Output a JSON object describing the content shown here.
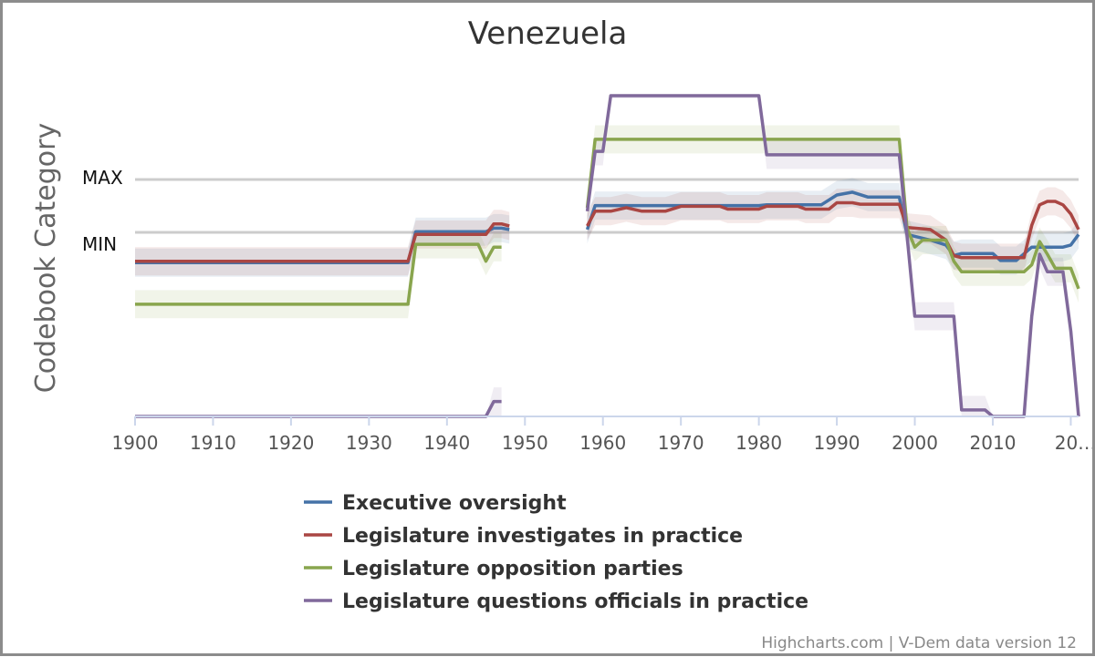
{
  "chart_data": {
    "type": "line",
    "title": "Venezuela",
    "ylabel": "Codebook Category",
    "y_markers": [
      "MAX",
      "MIN"
    ],
    "x_ticks": [
      "1900",
      "1910",
      "1920",
      "1930",
      "1940",
      "1950",
      "1960",
      "1970",
      "1980",
      "1990",
      "2000",
      "2010",
      "20…"
    ],
    "xlim": [
      1900,
      2021
    ],
    "grid": false,
    "legend_position": "bottom",
    "series": [
      {
        "name": "Executive oversight",
        "color": "#4572a7",
        "points": [
          [
            1900,
            0.47
          ],
          [
            1935,
            0.47
          ],
          [
            1936,
            0.91
          ],
          [
            1945,
            0.91
          ],
          [
            1946,
            0.96
          ],
          [
            1947,
            0.96
          ],
          [
            1948,
            0.94
          ],
          [
            1958,
            0.94
          ],
          [
            1959,
            1.28
          ],
          [
            1980,
            1.28
          ],
          [
            1981,
            1.29
          ],
          [
            1988,
            1.29
          ],
          [
            1990,
            1.43
          ],
          [
            1992,
            1.47
          ],
          [
            1994,
            1.4
          ],
          [
            1998,
            1.4
          ],
          [
            1999,
            0.87
          ],
          [
            2002,
            0.79
          ],
          [
            2004,
            0.72
          ],
          [
            2005,
            0.57
          ],
          [
            2006,
            0.6
          ],
          [
            2010,
            0.6
          ],
          [
            2011,
            0.5
          ],
          [
            2013,
            0.5
          ],
          [
            2015,
            0.69
          ],
          [
            2019,
            0.69
          ],
          [
            2020,
            0.72
          ],
          [
            2021,
            0.87
          ]
        ],
        "missing": [
          [
            1948,
            1958
          ]
        ]
      },
      {
        "name": "Legislature investigates in practice",
        "color": "#aa4643",
        "points": [
          [
            1900,
            0.49
          ],
          [
            1935,
            0.49
          ],
          [
            1936,
            0.87
          ],
          [
            1945,
            0.87
          ],
          [
            1946,
            1.02
          ],
          [
            1947,
            1.02
          ],
          [
            1948,
            0.99
          ],
          [
            1958,
            0.99
          ],
          [
            1959,
            1.2
          ],
          [
            1961,
            1.2
          ],
          [
            1963,
            1.25
          ],
          [
            1965,
            1.2
          ],
          [
            1968,
            1.2
          ],
          [
            1970,
            1.27
          ],
          [
            1975,
            1.27
          ],
          [
            1976,
            1.23
          ],
          [
            1980,
            1.23
          ],
          [
            1981,
            1.27
          ],
          [
            1985,
            1.27
          ],
          [
            1986,
            1.23
          ],
          [
            1989,
            1.23
          ],
          [
            1990,
            1.32
          ],
          [
            1992,
            1.32
          ],
          [
            1993,
            1.3
          ],
          [
            1998,
            1.3
          ],
          [
            1999,
            0.97
          ],
          [
            2002,
            0.94
          ],
          [
            2004,
            0.79
          ],
          [
            2005,
            0.57
          ],
          [
            2006,
            0.54
          ],
          [
            2010,
            0.54
          ],
          [
            2011,
            0.54
          ],
          [
            2014,
            0.54
          ],
          [
            2015,
            1.0
          ],
          [
            2016,
            1.29
          ],
          [
            2017,
            1.34
          ],
          [
            2018,
            1.34
          ],
          [
            2019,
            1.29
          ],
          [
            2020,
            1.16
          ],
          [
            2021,
            0.94
          ]
        ],
        "missing": [
          [
            1948,
            1958
          ]
        ]
      },
      {
        "name": "Legislature opposition parties",
        "color": "#89a54e",
        "points": [
          [
            1900,
            -0.12
          ],
          [
            1935,
            -0.12
          ],
          [
            1936,
            0.73
          ],
          [
            1944,
            0.73
          ],
          [
            1945,
            0.49
          ],
          [
            1946,
            0.69
          ],
          [
            1947,
            0.69
          ],
          [
            1958,
            1.25
          ],
          [
            1959,
            2.22
          ],
          [
            1998,
            2.22
          ],
          [
            1999,
            0.96
          ],
          [
            2000,
            0.69
          ],
          [
            2001,
            0.79
          ],
          [
            2004,
            0.79
          ],
          [
            2005,
            0.49
          ],
          [
            2006,
            0.34
          ],
          [
            2014,
            0.34
          ],
          [
            2015,
            0.44
          ],
          [
            2016,
            0.77
          ],
          [
            2017,
            0.59
          ],
          [
            2018,
            0.39
          ],
          [
            2020,
            0.39
          ],
          [
            2021,
            0.1
          ]
        ],
        "missing": [
          [
            1947,
            1958
          ]
        ]
      },
      {
        "name": "Legislature questions officials in practice",
        "color": "#80699b",
        "points": [
          [
            1900,
            -2.12
          ],
          [
            1945,
            -2.12
          ],
          [
            1946,
            -1.5
          ],
          [
            1947,
            -1.5
          ],
          [
            1958,
            1.2
          ],
          [
            1959,
            2.05
          ],
          [
            1960,
            2.05
          ],
          [
            1961,
            3.0
          ],
          [
            1980,
            3.0
          ],
          [
            1981,
            2.0
          ],
          [
            1998,
            2.0
          ],
          [
            2000,
            -0.29
          ],
          [
            2005,
            -0.29
          ],
          [
            2006,
            -1.62
          ],
          [
            2009,
            -1.62
          ],
          [
            2010,
            -2.12
          ],
          [
            2014,
            -2.12
          ],
          [
            2015,
            -0.29
          ],
          [
            2016,
            0.59
          ],
          [
            2017,
            0.34
          ],
          [
            2019,
            0.34
          ],
          [
            2020,
            -0.5
          ],
          [
            2021,
            -2.2
          ]
        ],
        "missing": [
          [
            1947,
            1958
          ]
        ]
      }
    ],
    "credits": "Highcharts.com | V-Dem data version 12"
  }
}
